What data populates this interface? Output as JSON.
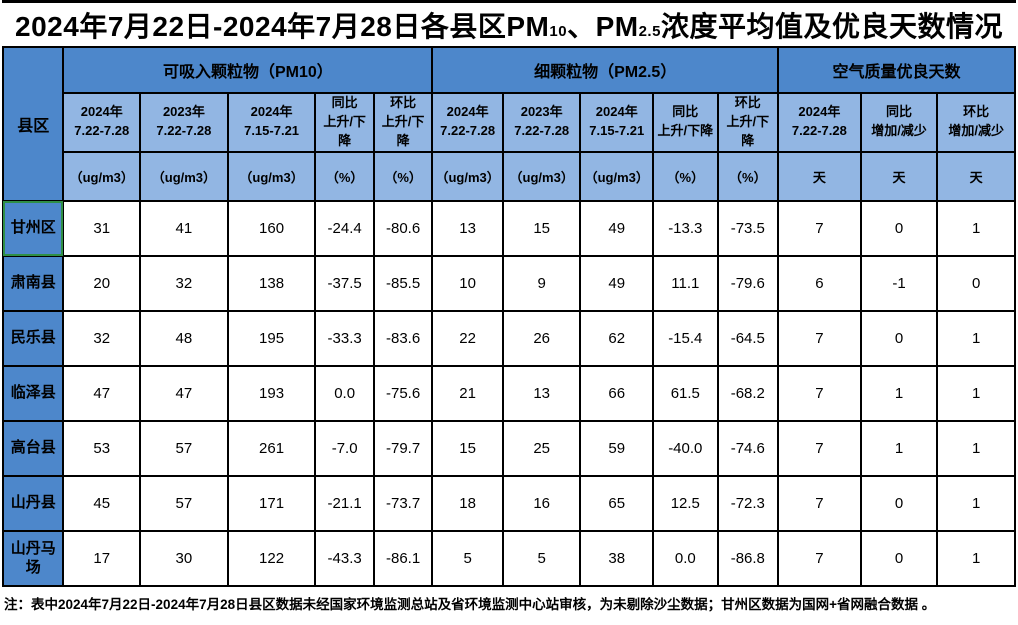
{
  "title": {
    "part1": "2024年7月22日-2024年7月28日各县区PM",
    "sub1": "10",
    "part2": "、PM",
    "sub2": "2.5",
    "part3": "浓度平均值及优良天数情况"
  },
  "table": {
    "corner_label": "县区",
    "groups": [
      {
        "key": "pm10",
        "label": "可吸入颗粒物（PM10）",
        "cols": [
          {
            "line1": "2024年",
            "line2": "7.22-7.28",
            "unit": "（ug/m3）"
          },
          {
            "line1": "2023年",
            "line2": "7.22-7.28",
            "unit": "（ug/m3）"
          },
          {
            "line1": "2024年",
            "line2": "7.15-7.21",
            "unit": "（ug/m3）"
          },
          {
            "line1": "同比",
            "line2": "上升/下降",
            "unit": "（%）"
          },
          {
            "line1": "环比",
            "line2": "上升/下降",
            "unit": "（%）"
          }
        ]
      },
      {
        "key": "pm25",
        "label": "细颗粒物（PM2.5）",
        "cols": [
          {
            "line1": "2024年",
            "line2": "7.22-7.28",
            "unit": "（ug/m3）"
          },
          {
            "line1": "2023年",
            "line2": "7.22-7.28",
            "unit": "（ug/m3）"
          },
          {
            "line1": "2024年",
            "line2": "7.15-7.21",
            "unit": "（ug/m3）"
          },
          {
            "line1": "同比",
            "line2": "上升/下降",
            "unit": "（%）"
          },
          {
            "line1": "环比",
            "line2": "上升/下降",
            "unit": "（%）"
          }
        ]
      },
      {
        "key": "days",
        "label": "空气质量优良天数",
        "cols": [
          {
            "line1": "2024年",
            "line2": "7.22-7.28",
            "unit": "天"
          },
          {
            "line1": "同比",
            "line2": "增加/减少",
            "unit": "天"
          },
          {
            "line1": "环比",
            "line2": "增加/减少",
            "unit": "天"
          }
        ]
      }
    ],
    "rows": [
      {
        "name": "甘州区",
        "selected": true,
        "values": [
          "31",
          "41",
          "160",
          "-24.4",
          "-80.6",
          "13",
          "15",
          "49",
          "-13.3",
          "-73.5",
          "7",
          "0",
          "1"
        ]
      },
      {
        "name": "肃南县",
        "selected": false,
        "values": [
          "20",
          "32",
          "138",
          "-37.5",
          "-85.5",
          "10",
          "9",
          "49",
          "11.1",
          "-79.6",
          "6",
          "-1",
          "0"
        ]
      },
      {
        "name": "民乐县",
        "selected": false,
        "values": [
          "32",
          "48",
          "195",
          "-33.3",
          "-83.6",
          "22",
          "26",
          "62",
          "-15.4",
          "-64.5",
          "7",
          "0",
          "1"
        ]
      },
      {
        "name": "临泽县",
        "selected": false,
        "values": [
          "47",
          "47",
          "193",
          "0.0",
          "-75.6",
          "21",
          "13",
          "66",
          "61.5",
          "-68.2",
          "7",
          "1",
          "1"
        ]
      },
      {
        "name": "高台县",
        "selected": false,
        "values": [
          "53",
          "57",
          "261",
          "-7.0",
          "-79.7",
          "15",
          "25",
          "59",
          "-40.0",
          "-74.6",
          "7",
          "1",
          "1"
        ]
      },
      {
        "name": "山丹县",
        "selected": false,
        "values": [
          "45",
          "57",
          "171",
          "-21.1",
          "-73.7",
          "18",
          "16",
          "65",
          "12.5",
          "-72.3",
          "7",
          "0",
          "1"
        ]
      },
      {
        "name": "山丹马场",
        "selected": false,
        "values": [
          "17",
          "30",
          "122",
          "-43.3",
          "-86.1",
          "5",
          "5",
          "38",
          "0.0",
          "-86.8",
          "7",
          "0",
          "1"
        ]
      }
    ]
  },
  "note": "注：表中2024年7月22日-2024年7月28日县区数据未经国家环境监测总站及省环境监测中心站审核，为未剔除沙尘数据；甘州区数据为国网+省网融合数据 。",
  "colors": {
    "header_blue": "#4d87cb",
    "light_blue": "#92b6e3",
    "selection_green": "#2f8f46",
    "border_black": "#000000"
  }
}
